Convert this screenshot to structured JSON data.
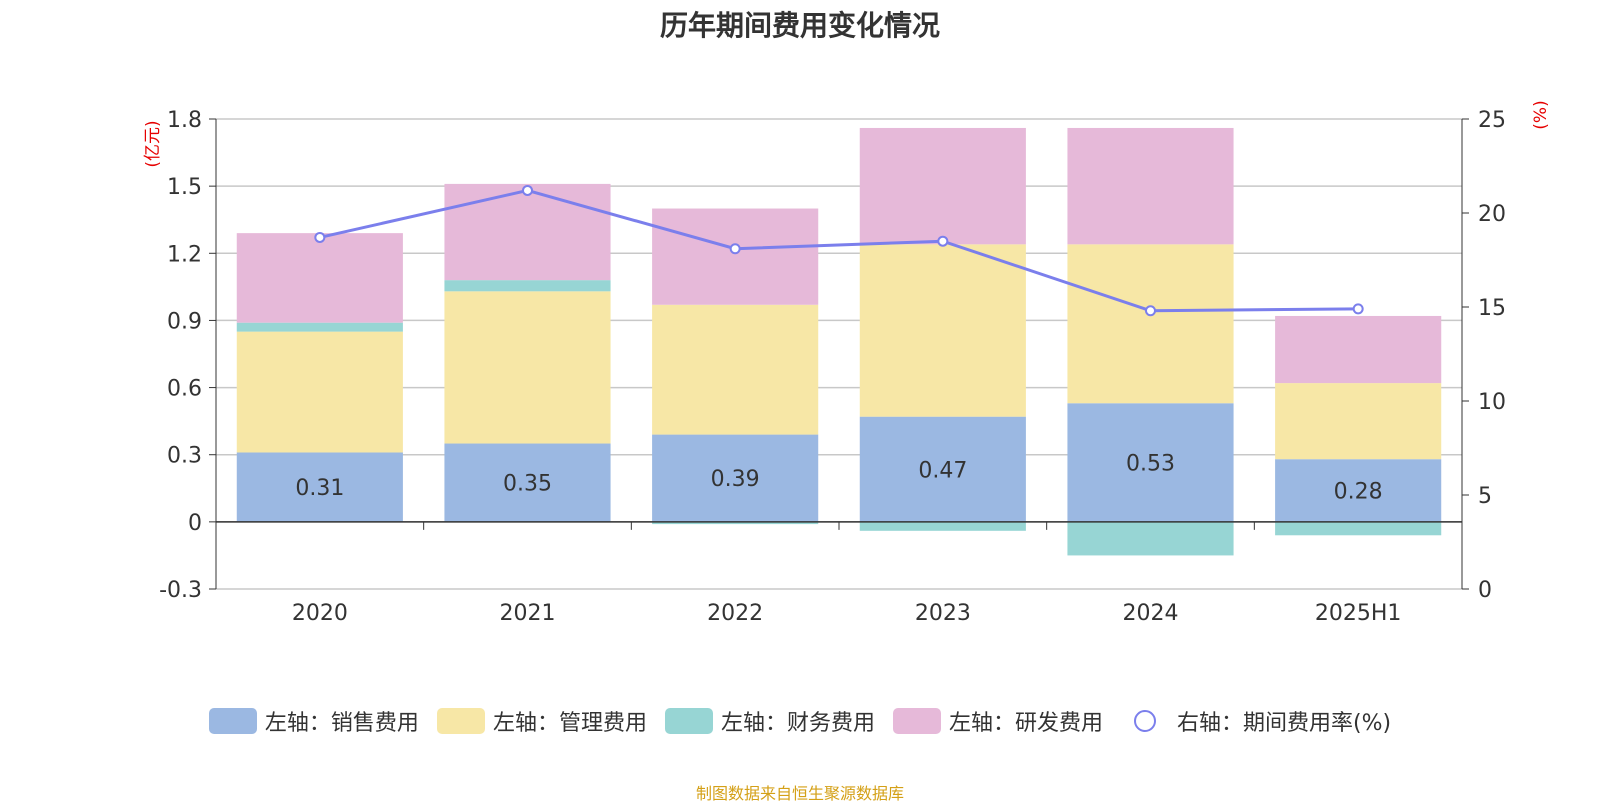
{
  "chart_data": {
    "type": "bar",
    "title": "历年期间费用变化情况",
    "categories": [
      "2020",
      "2021",
      "2022",
      "2023",
      "2024",
      "2025H1"
    ],
    "left_axis": {
      "label": "(亿元)",
      "ylim": [
        -0.3,
        1.8
      ],
      "ticks": [
        "-0.3",
        "0",
        "0.3",
        "0.6",
        "0.9",
        "1.2",
        "1.5",
        "1.8"
      ]
    },
    "right_axis": {
      "label": "(%)",
      "ylim": [
        0,
        25
      ],
      "ticks": [
        "0",
        "5",
        "10",
        "15",
        "20",
        "25"
      ]
    },
    "series": [
      {
        "name": "左轴：销售费用",
        "type": "bar",
        "axis": "left",
        "color": "#9bb8e2",
        "values": [
          0.31,
          0.35,
          0.39,
          0.47,
          0.53,
          0.28
        ],
        "labels": [
          "0.31",
          "0.35",
          "0.39",
          "0.47",
          "0.53",
          "0.28"
        ]
      },
      {
        "name": "左轴：管理费用",
        "type": "bar",
        "axis": "left",
        "color": "#f7e7a6",
        "values": [
          0.54,
          0.68,
          0.58,
          0.77,
          0.71,
          0.34
        ]
      },
      {
        "name": "左轴：财务费用",
        "type": "bar",
        "axis": "left",
        "color": "#97d5d4",
        "values": [
          0.04,
          0.05,
          -0.01,
          -0.04,
          -0.15,
          -0.06
        ]
      },
      {
        "name": "左轴：研发费用",
        "type": "bar",
        "axis": "left",
        "color": "#e6b9d9",
        "values": [
          0.4,
          0.43,
          0.43,
          0.52,
          0.52,
          0.3
        ]
      },
      {
        "name": "右轴：期间费用率(%)",
        "type": "line",
        "axis": "right",
        "color": "#7b7fec",
        "values": [
          18.7,
          21.2,
          18.1,
          18.5,
          14.8,
          14.9
        ]
      }
    ],
    "grid": true,
    "legend_position": "bottom"
  },
  "footer": {
    "source": "制图数据来自恒生聚源数据库",
    "color": "#d4a017"
  },
  "colors": {
    "axis_label": "#e60000",
    "text": "#333333"
  }
}
